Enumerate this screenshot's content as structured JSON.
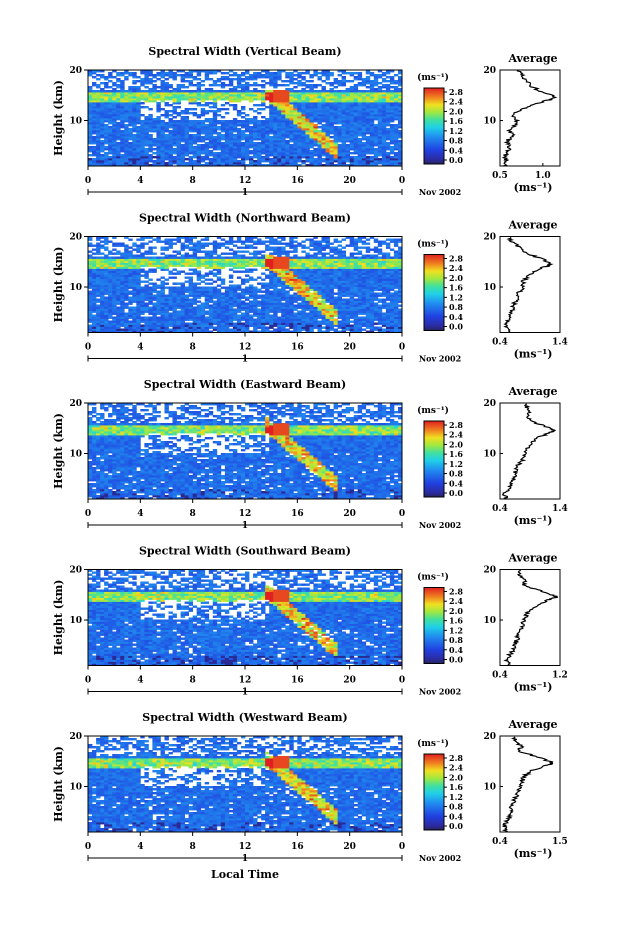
{
  "figure": {
    "xlabel": "Local Time",
    "date_label": "Nov 2002",
    "x_ticks": [
      "0",
      "4",
      "8",
      "12",
      "16",
      "20",
      "0"
    ],
    "day_label": "1",
    "y_ticks": [
      "20",
      "10"
    ],
    "ylabel": "Height (km)",
    "colorbar_unit": "(ms⁻¹)",
    "colorbar_ticks": [
      "2.8",
      "2.4",
      "2.0",
      "1.6",
      "1.2",
      "0.8",
      "0.4",
      "0.0"
    ],
    "avg_title": "Average",
    "avg_unit": "(ms⁻¹)",
    "avg_y_ticks": [
      "20",
      "10"
    ],
    "colors": {
      "low": "#2040d8",
      "mid": "#20c8e0",
      "high": "#e02020",
      "bg": "#ffffff"
    }
  },
  "chart_data": [
    {
      "type": "heatmap",
      "title": "Spectral Width (Vertical Beam)",
      "ylabel": "Height (km)",
      "xlabel": "",
      "ylim": [
        1,
        20
      ],
      "xlim": [
        0,
        24
      ],
      "avg_xticks": [
        "0.5",
        "1.0"
      ],
      "avg_xlim": [
        0.5,
        1.2
      ],
      "avg_profile": {
        "height": [
          1,
          2,
          3,
          4,
          5,
          6,
          7,
          8,
          9,
          10,
          11,
          12,
          13,
          14,
          14.5,
          15,
          16,
          17,
          18,
          19,
          20
        ],
        "value": [
          0.55,
          0.58,
          0.56,
          0.6,
          0.62,
          0.58,
          0.65,
          0.62,
          0.68,
          0.7,
          0.66,
          0.72,
          0.85,
          1.05,
          1.15,
          1.1,
          0.95,
          0.85,
          0.8,
          0.75,
          0.7
        ]
      }
    },
    {
      "type": "heatmap",
      "title": "Spectral Width (Northward Beam)",
      "ylabel": "Height (km)",
      "xlabel": "",
      "ylim": [
        1,
        20
      ],
      "xlim": [
        0,
        24
      ],
      "avg_xticks": [
        "0.4",
        "1.4"
      ],
      "avg_xlim": [
        0.4,
        1.4
      ],
      "avg_profile": {
        "height": [
          1,
          2,
          3,
          4,
          5,
          6,
          7,
          8,
          9,
          10,
          11,
          12,
          13,
          14,
          14.5,
          15,
          16,
          17,
          18,
          19,
          20
        ],
        "value": [
          0.55,
          0.5,
          0.52,
          0.58,
          0.6,
          0.62,
          0.65,
          0.7,
          0.72,
          0.8,
          0.78,
          0.85,
          0.95,
          1.15,
          1.25,
          1.2,
          1.0,
          0.8,
          0.7,
          0.6,
          0.55
        ]
      }
    },
    {
      "type": "heatmap",
      "title": "Spectral Width (Eastward Beam)",
      "ylabel": "Height (km)",
      "xlabel": "",
      "ylim": [
        1,
        20
      ],
      "xlim": [
        0,
        24
      ],
      "avg_xticks": [
        "0.4",
        "1.4"
      ],
      "avg_xlim": [
        0.4,
        1.4
      ],
      "avg_profile": {
        "height": [
          1,
          2,
          3,
          4,
          5,
          6,
          7,
          8,
          9,
          10,
          11,
          12,
          13,
          14,
          14.5,
          15,
          16,
          17,
          18,
          19,
          20
        ],
        "value": [
          0.5,
          0.48,
          0.55,
          0.6,
          0.62,
          0.65,
          0.68,
          0.72,
          0.8,
          0.82,
          0.85,
          0.9,
          1.0,
          1.2,
          1.3,
          1.25,
          1.0,
          0.85,
          0.9,
          0.85,
          0.8
        ]
      }
    },
    {
      "type": "heatmap",
      "title": "Spectral Width (Southward Beam)",
      "ylabel": "Height (km)",
      "xlabel": "",
      "ylim": [
        1,
        20
      ],
      "xlim": [
        0,
        24
      ],
      "avg_xticks": [
        "0.4",
        "1.2"
      ],
      "avg_xlim": [
        0.4,
        1.2
      ],
      "avg_profile": {
        "height": [
          1,
          2,
          3,
          4,
          5,
          6,
          7,
          8,
          9,
          10,
          11,
          12,
          13,
          14,
          14.5,
          15,
          16,
          17,
          18,
          19,
          20
        ],
        "value": [
          0.55,
          0.5,
          0.52,
          0.58,
          0.6,
          0.62,
          0.65,
          0.68,
          0.7,
          0.72,
          0.75,
          0.8,
          0.9,
          1.05,
          1.15,
          1.1,
          0.9,
          0.7,
          0.75,
          0.65,
          0.7
        ]
      }
    },
    {
      "type": "heatmap",
      "title": "Spectral Width (Westward Beam)",
      "ylabel": "Height (km)",
      "xlabel": "Local Time",
      "ylim": [
        1,
        20
      ],
      "xlim": [
        0,
        24
      ],
      "avg_xticks": [
        "0.4",
        "1.5"
      ],
      "avg_xlim": [
        0.4,
        1.5
      ],
      "avg_profile": {
        "height": [
          1,
          2,
          3,
          4,
          5,
          6,
          7,
          8,
          9,
          10,
          11,
          12,
          13,
          14,
          14.5,
          15,
          16,
          17,
          18,
          19,
          20
        ],
        "value": [
          0.5,
          0.48,
          0.52,
          0.58,
          0.62,
          0.6,
          0.65,
          0.7,
          0.75,
          0.78,
          0.8,
          0.85,
          0.95,
          1.2,
          1.35,
          1.3,
          1.05,
          0.75,
          0.8,
          0.65,
          0.7
        ]
      }
    }
  ]
}
